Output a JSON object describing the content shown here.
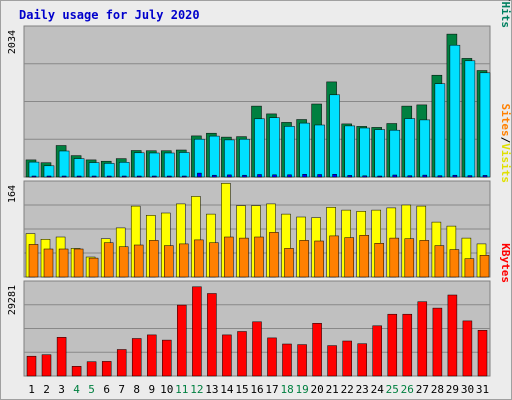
{
  "chart_data": [
    {
      "type": "bar",
      "title": "Daily usage for July 2020",
      "categories": [
        "1",
        "2",
        "3",
        "4",
        "5",
        "6",
        "7",
        "8",
        "9",
        "10",
        "11",
        "12",
        "13",
        "14",
        "15",
        "16",
        "17",
        "18",
        "19",
        "20",
        "21",
        "22",
        "23",
        "24",
        "25",
        "26",
        "27",
        "28",
        "29",
        "30",
        "31"
      ],
      "weekend_days": [
        "4",
        "5",
        "11",
        "12",
        "18",
        "19",
        "25",
        "26"
      ],
      "y_max_label": "2034",
      "ylim": [
        0,
        2150
      ],
      "grid": true,
      "right_label": [
        "Pages",
        "Files",
        "Hits"
      ],
      "series": [
        {
          "name": "Hits",
          "color": "#008040",
          "values": [
            243,
            204,
            449,
            305,
            244,
            225,
            262,
            378,
            375,
            375,
            385,
            585,
            623,
            568,
            575,
            1009,
            898,
            778,
            818,
            1040,
            1354,
            756,
            721,
            706,
            762,
            1010,
            1027,
            1450,
            2034,
            1689,
            1516
          ]
        },
        {
          "name": "Files",
          "color": "#00e0ff",
          "values": [
            212,
            160,
            370,
            262,
            205,
            193,
            209,
            344,
            342,
            342,
            349,
            538,
            582,
            528,
            538,
            829,
            845,
            720,
            768,
            740,
            1170,
            727,
            698,
            675,
            666,
            832,
            813,
            1328,
            1876,
            1655,
            1483
          ]
        },
        {
          "name": "Pages",
          "color": "#0000ff",
          "values": [
            7,
            9,
            6,
            5,
            3,
            5,
            3,
            8,
            14,
            7,
            14,
            55,
            25,
            30,
            25,
            35,
            32,
            31,
            39,
            36,
            38,
            23,
            17,
            4,
            28,
            18,
            27,
            18,
            25,
            20,
            23
          ]
        }
      ]
    },
    {
      "type": "bar",
      "categories": [
        "1",
        "2",
        "3",
        "4",
        "5",
        "6",
        "7",
        "8",
        "9",
        "10",
        "11",
        "12",
        "13",
        "14",
        "15",
        "16",
        "17",
        "18",
        "19",
        "20",
        "21",
        "22",
        "23",
        "24",
        "25",
        "26",
        "27",
        "28",
        "29",
        "30",
        "31"
      ],
      "y_max_label": "164",
      "ylim": [
        0,
        168
      ],
      "grid": true,
      "right_label": [
        "Sites",
        "Visits"
      ],
      "series": [
        {
          "name": "Visits",
          "color": "#ffff00",
          "values": [
            76,
            66,
            70,
            50,
            35,
            67,
            86,
            124,
            108,
            112,
            128,
            141,
            110,
            164,
            125,
            125,
            128,
            110,
            105,
            104,
            122,
            117,
            115,
            117,
            121,
            126,
            124,
            96,
            89,
            68,
            58
          ]
        },
        {
          "name": "Sites",
          "color": "#ff8000",
          "values": [
            57,
            49,
            49,
            49,
            33,
            60,
            53,
            56,
            64,
            55,
            58,
            65,
            60,
            70,
            68,
            70,
            78,
            50,
            64,
            63,
            72,
            69,
            73,
            59,
            68,
            67,
            64,
            55,
            48,
            32,
            38
          ]
        }
      ]
    },
    {
      "type": "bar",
      "categories": [
        "1",
        "2",
        "3",
        "4",
        "5",
        "6",
        "7",
        "8",
        "9",
        "10",
        "11",
        "12",
        "13",
        "14",
        "15",
        "16",
        "17",
        "18",
        "19",
        "20",
        "21",
        "22",
        "23",
        "24",
        "25",
        "26",
        "27",
        "28",
        "29",
        "30",
        "31"
      ],
      "y_max_label": "29281",
      "ylim": [
        0,
        31200
      ],
      "grid": true,
      "right_label": [
        "KBytes"
      ],
      "series": [
        {
          "name": "KBytes",
          "color": "#ff0000",
          "values": [
            6500,
            7000,
            12700,
            3200,
            4700,
            4800,
            8700,
            12300,
            13500,
            11800,
            23300,
            29281,
            27100,
            13500,
            14600,
            17800,
            12500,
            10500,
            10300,
            17300,
            10000,
            11500,
            10600,
            16500,
            20300,
            20300,
            24400,
            22300,
            26600,
            18100,
            15000
          ]
        }
      ]
    }
  ]
}
